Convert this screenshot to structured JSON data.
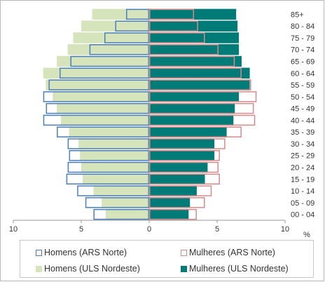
{
  "chart_data": {
    "type": "bar",
    "orientation": "horizontal",
    "categories": [
      "85+",
      "80 - 84",
      "75 - 79",
      "70 - 74",
      "65 - 69",
      "60 - 64",
      "55 - 59",
      "50 - 54",
      "45 - 49",
      "40 - 44",
      "35 - 39",
      "30 - 34",
      "25 - 29",
      "20 - 24",
      "15 - 19",
      "10 - 14",
      "05 - 09",
      "00 - 04"
    ],
    "series": [
      {
        "name": "Homens (ARS Norte)",
        "side": "left",
        "style": "outline",
        "color": "#4a7ebb",
        "values": [
          1.7,
          2.5,
          3.3,
          4.4,
          5.8,
          6.6,
          7.4,
          7.8,
          7.6,
          7.8,
          6.8,
          6.0,
          5.9,
          6.0,
          6.1,
          5.3,
          4.7,
          4.1
        ]
      },
      {
        "name": "Mulheres (ARS Norte)",
        "side": "right",
        "style": "outline",
        "color": "#d88a8a",
        "values": [
          3.3,
          3.6,
          4.1,
          5.1,
          6.3,
          6.8,
          7.5,
          7.9,
          7.7,
          7.8,
          6.8,
          5.6,
          5.2,
          5.1,
          5.2,
          4.6,
          4.1,
          3.5
        ]
      },
      {
        "name": "Homens (ULS Nordeste)",
        "side": "left",
        "style": "fill",
        "color": "#d6e4bc",
        "values": [
          4.2,
          5.0,
          5.6,
          6.0,
          6.8,
          7.8,
          7.6,
          7.1,
          6.8,
          6.5,
          5.9,
          5.2,
          5.1,
          5.0,
          4.9,
          4.1,
          3.5,
          3.2
        ]
      },
      {
        "name": "Mulheres (ULS Nordeste)",
        "side": "right",
        "style": "fill",
        "color": "#007b78",
        "values": [
          6.4,
          6.5,
          6.6,
          6.6,
          6.8,
          7.4,
          7.4,
          6.6,
          6.3,
          6.2,
          5.7,
          4.8,
          4.8,
          4.3,
          4.1,
          3.5,
          3.0,
          2.9
        ]
      }
    ],
    "x_ticks": [
      10,
      5,
      0,
      5,
      10
    ],
    "xlim": [
      -10,
      10
    ],
    "x_unit": "%",
    "legend_position": "bottom"
  }
}
